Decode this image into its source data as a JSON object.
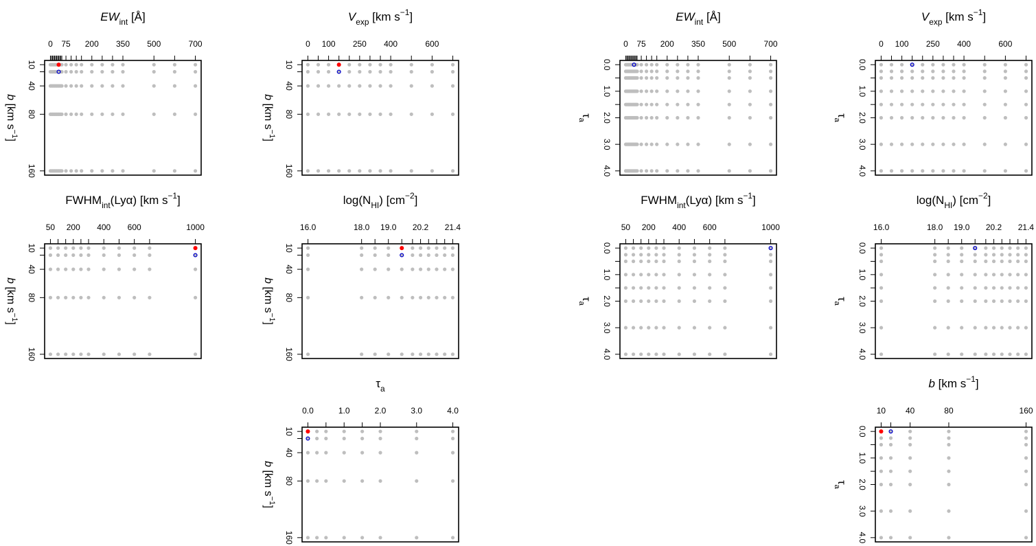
{
  "chart_data": [
    {
      "type": "scatter",
      "title": [
        {
          "text": "EW",
          "style": "italic"
        },
        {
          "text": "int",
          "style": "sub"
        },
        {
          "text": " [Å]"
        }
      ],
      "ylabel": [
        {
          "text": "b",
          "style": "italic"
        },
        {
          "text": " [km s"
        },
        {
          "text": "−1",
          "style": "sup"
        },
        {
          "text": "]"
        }
      ],
      "xlim": [
        -28,
        728
      ],
      "xticks": [
        0,
        75,
        200,
        350,
        500,
        700
      ],
      "xminor": [
        5,
        10,
        15,
        20,
        25,
        30,
        35,
        40,
        45,
        50,
        55,
        100,
        125,
        150,
        250,
        300,
        600
      ],
      "ylim": [
        166,
        4
      ],
      "yticks": [
        10,
        40,
        80,
        160
      ],
      "yminor": [
        20
      ],
      "grid_x": [
        0,
        5,
        10,
        15,
        20,
        25,
        30,
        35,
        40,
        45,
        50,
        55,
        75,
        100,
        125,
        150,
        200,
        250,
        300,
        350,
        500,
        600,
        700
      ],
      "grid_y": [
        10,
        20,
        40,
        80,
        160
      ],
      "grid_color": "#bebebe",
      "series": [
        {
          "color": "#ff0000",
          "filled": true,
          "x": [
            40
          ],
          "values": [
            10
          ]
        },
        {
          "color": "#0000cd",
          "filled": false,
          "x": [
            40
          ],
          "values": [
            20
          ]
        }
      ]
    },
    {
      "type": "scatter",
      "title": [
        {
          "text": "V",
          "style": "italic"
        },
        {
          "text": "exp",
          "style": "sub"
        },
        {
          "text": " [km s"
        },
        {
          "text": "−1",
          "style": "sup"
        },
        {
          "text": "]"
        }
      ],
      "ylabel": [
        {
          "text": "b",
          "style": "italic"
        },
        {
          "text": " [km s"
        },
        {
          "text": "−1",
          "style": "sup"
        },
        {
          "text": "]"
        }
      ],
      "xlim": [
        -28,
        728
      ],
      "xticks": [
        0,
        100,
        250,
        400,
        600
      ],
      "xminor": [
        50,
        150,
        200,
        300,
        350,
        500,
        700
      ],
      "ylim": [
        166,
        4
      ],
      "yticks": [
        10,
        40,
        80,
        160
      ],
      "yminor": [
        20
      ],
      "grid_x": [
        0,
        50,
        100,
        150,
        200,
        250,
        300,
        350,
        400,
        500,
        600,
        700
      ],
      "grid_y": [
        10,
        20,
        40,
        80,
        160
      ],
      "grid_color": "#bebebe",
      "series": [
        {
          "color": "#ff0000",
          "filled": true,
          "x": [
            150
          ],
          "values": [
            10
          ]
        },
        {
          "color": "#0000cd",
          "filled": false,
          "x": [
            150
          ],
          "values": [
            20
          ]
        }
      ]
    },
    {
      "type": "scatter",
      "title": [
        {
          "text": "EW",
          "style": "italic"
        },
        {
          "text": "int",
          "style": "sub"
        },
        {
          "text": " [Å]"
        }
      ],
      "ylabel": [
        {
          "text": "τ"
        },
        {
          "text": "a",
          "style": "sub"
        }
      ],
      "xlim": [
        -28,
        728
      ],
      "xticks": [
        0,
        75,
        200,
        350,
        500,
        700
      ],
      "xminor": [
        5,
        10,
        15,
        20,
        25,
        30,
        35,
        40,
        45,
        50,
        55,
        100,
        125,
        150,
        250,
        300,
        600
      ],
      "ylim": [
        4.16,
        -0.16
      ],
      "yticks": [
        {
          "value": 0,
          "label": "0.0"
        },
        {
          "value": 1,
          "label": "1.0"
        },
        {
          "value": 2,
          "label": "2.0"
        },
        {
          "value": 3,
          "label": "3.0"
        },
        {
          "value": 4,
          "label": "4.0"
        }
      ],
      "yminor": [
        0.5,
        1.5
      ],
      "grid_x": [
        0,
        5,
        10,
        15,
        20,
        25,
        30,
        35,
        40,
        45,
        50,
        55,
        75,
        100,
        125,
        150,
        200,
        250,
        300,
        350,
        500,
        600,
        700
      ],
      "grid_y": [
        0,
        0.25,
        0.5,
        1,
        1.5,
        2,
        3,
        4
      ],
      "grid_color": "#bebebe",
      "series": [
        {
          "color": "#0000cd",
          "filled": false,
          "x": [
            40
          ],
          "values": [
            0
          ]
        }
      ]
    },
    {
      "type": "scatter",
      "title": [
        {
          "text": "V",
          "style": "italic"
        },
        {
          "text": "exp",
          "style": "sub"
        },
        {
          "text": " [km s"
        },
        {
          "text": "−1",
          "style": "sup"
        },
        {
          "text": "]"
        }
      ],
      "ylabel": [
        {
          "text": "τ"
        },
        {
          "text": "a",
          "style": "sub"
        }
      ],
      "xlim": [
        -28,
        728
      ],
      "xticks": [
        0,
        100,
        250,
        400,
        600
      ],
      "xminor": [
        50,
        150,
        200,
        300,
        350,
        500,
        700
      ],
      "ylim": [
        4.16,
        -0.16
      ],
      "yticks": [
        {
          "value": 0,
          "label": "0.0"
        },
        {
          "value": 1,
          "label": "1.0"
        },
        {
          "value": 2,
          "label": "2.0"
        },
        {
          "value": 3,
          "label": "3.0"
        },
        {
          "value": 4,
          "label": "4.0"
        }
      ],
      "yminor": [
        0.5,
        1.5
      ],
      "grid_x": [
        0,
        50,
        100,
        150,
        200,
        250,
        300,
        350,
        400,
        500,
        600,
        700
      ],
      "grid_y": [
        0,
        0.25,
        0.5,
        1,
        1.5,
        2,
        3,
        4
      ],
      "grid_color": "#bebebe",
      "series": [
        {
          "color": "#0000cd",
          "filled": false,
          "x": [
            150
          ],
          "values": [
            0
          ]
        }
      ]
    },
    {
      "type": "scatter",
      "title": [
        {
          "text": "FWHM"
        },
        {
          "text": "int",
          "style": "sub"
        },
        {
          "text": "(Lyα) [km s"
        },
        {
          "text": "−1",
          "style": "sup"
        },
        {
          "text": "]"
        }
      ],
      "ylabel": [
        {
          "text": "b",
          "style": "italic"
        },
        {
          "text": " [km s"
        },
        {
          "text": "−1",
          "style": "sup"
        },
        {
          "text": "]"
        }
      ],
      "xlim": [
        12,
        1038
      ],
      "xticks": [
        50,
        200,
        400,
        600,
        1000
      ],
      "xminor": [
        100,
        150,
        250,
        300,
        500,
        700
      ],
      "ylim": [
        166,
        4
      ],
      "yticks": [
        10,
        40,
        80,
        160
      ],
      "yminor": [
        20
      ],
      "grid_x": [
        50,
        100,
        150,
        200,
        250,
        300,
        400,
        500,
        600,
        700,
        1000
      ],
      "grid_y": [
        10,
        20,
        40,
        80,
        160
      ],
      "grid_color": "#bebebe",
      "series": [
        {
          "color": "#ff0000",
          "filled": true,
          "x": [
            1000
          ],
          "values": [
            10
          ]
        },
        {
          "color": "#0000cd",
          "filled": false,
          "x": [
            1000
          ],
          "values": [
            20
          ]
        }
      ]
    },
    {
      "type": "scatter",
      "title": [
        {
          "text": "log(N"
        },
        {
          "text": "HI",
          "style": "sub"
        },
        {
          "text": ") [cm"
        },
        {
          "text": "−2",
          "style": "sup"
        },
        {
          "text": "]"
        }
      ],
      "ylabel": [
        {
          "text": "b",
          "style": "italic"
        },
        {
          "text": " [km s"
        },
        {
          "text": "−1",
          "style": "sup"
        },
        {
          "text": "]"
        }
      ],
      "xlim": [
        15.78,
        21.62
      ],
      "xticks": [
        {
          "value": 16,
          "label": "16.0"
        },
        {
          "value": 18,
          "label": "18.0"
        },
        {
          "value": 19,
          "label": "19.0"
        },
        20.2,
        21.4
      ],
      "xminor": [
        18.5,
        19.5,
        19.9,
        20.5,
        20.8,
        21.1
      ],
      "ylim": [
        166,
        4
      ],
      "yticks": [
        10,
        40,
        80,
        160
      ],
      "yminor": [
        20
      ],
      "grid_x": [
        16,
        18,
        18.5,
        19,
        19.5,
        19.9,
        20.2,
        20.5,
        20.8,
        21.1,
        21.4
      ],
      "grid_y": [
        10,
        20,
        40,
        80,
        160
      ],
      "grid_color": "#bebebe",
      "series": [
        {
          "color": "#ff0000",
          "filled": true,
          "x": [
            19.5
          ],
          "values": [
            10
          ]
        },
        {
          "color": "#0000cd",
          "filled": false,
          "x": [
            19.5
          ],
          "values": [
            20
          ]
        }
      ]
    },
    {
      "type": "scatter",
      "title": [
        {
          "text": "FWHM"
        },
        {
          "text": "int",
          "style": "sub"
        },
        {
          "text": "(Lyα) [km s"
        },
        {
          "text": "−1",
          "style": "sup"
        },
        {
          "text": "]"
        }
      ],
      "ylabel": [
        {
          "text": "τ"
        },
        {
          "text": "a",
          "style": "sub"
        }
      ],
      "xlim": [
        12,
        1038
      ],
      "xticks": [
        50,
        200,
        400,
        600,
        1000
      ],
      "xminor": [
        100,
        150,
        250,
        300,
        500,
        700
      ],
      "ylim": [
        4.16,
        -0.16
      ],
      "yticks": [
        {
          "value": 0,
          "label": "0.0"
        },
        {
          "value": 1,
          "label": "1.0"
        },
        {
          "value": 2,
          "label": "2.0"
        },
        {
          "value": 3,
          "label": "3.0"
        },
        {
          "value": 4,
          "label": "4.0"
        }
      ],
      "yminor": [
        0.5,
        1.5
      ],
      "grid_x": [
        50,
        100,
        150,
        200,
        250,
        300,
        400,
        500,
        600,
        700,
        1000
      ],
      "grid_y": [
        0,
        0.25,
        0.5,
        1,
        1.5,
        2,
        3,
        4
      ],
      "grid_color": "#bebebe",
      "series": [
        {
          "color": "#0000cd",
          "filled": false,
          "x": [
            1000
          ],
          "values": [
            0
          ]
        }
      ]
    },
    {
      "type": "scatter",
      "title": [
        {
          "text": "log(N"
        },
        {
          "text": "HI",
          "style": "sub"
        },
        {
          "text": ") [cm"
        },
        {
          "text": "−2",
          "style": "sup"
        },
        {
          "text": "]"
        }
      ],
      "ylabel": [
        {
          "text": "τ"
        },
        {
          "text": "a",
          "style": "sub"
        }
      ],
      "xlim": [
        15.78,
        21.62
      ],
      "xticks": [
        {
          "value": 16,
          "label": "16.0"
        },
        {
          "value": 18,
          "label": "18.0"
        },
        {
          "value": 19,
          "label": "19.0"
        },
        20.2,
        21.4
      ],
      "xminor": [
        18.5,
        19.5,
        19.9,
        20.5,
        20.8,
        21.1
      ],
      "ylim": [
        4.16,
        -0.16
      ],
      "yticks": [
        {
          "value": 0,
          "label": "0.0"
        },
        {
          "value": 1,
          "label": "1.0"
        },
        {
          "value": 2,
          "label": "2.0"
        },
        {
          "value": 3,
          "label": "3.0"
        },
        {
          "value": 4,
          "label": "4.0"
        }
      ],
      "yminor": [
        0.5,
        1.5
      ],
      "grid_x": [
        16,
        18,
        18.5,
        19,
        19.5,
        19.9,
        20.2,
        20.5,
        20.8,
        21.1,
        21.4
      ],
      "grid_y": [
        0,
        0.25,
        0.5,
        1,
        1.5,
        2,
        3,
        4
      ],
      "grid_color": "#bebebe",
      "series": [
        {
          "color": "#0000cd",
          "filled": false,
          "x": [
            19.5
          ],
          "values": [
            0
          ]
        }
      ]
    },
    {
      "type": "scatter",
      "title": [
        {
          "text": "τ"
        },
        {
          "text": "a",
          "style": "sub"
        }
      ],
      "ylabel": [
        {
          "text": "b",
          "style": "italic"
        },
        {
          "text": " [km s"
        },
        {
          "text": "−1",
          "style": "sup"
        },
        {
          "text": "]"
        }
      ],
      "xlim": [
        -0.16,
        4.16
      ],
      "xticks": [
        {
          "value": 0,
          "label": "0.0"
        },
        {
          "value": 1,
          "label": "1.0"
        },
        {
          "value": 2,
          "label": "2.0"
        },
        {
          "value": 3,
          "label": "3.0"
        },
        {
          "value": 4,
          "label": "4.0"
        }
      ],
      "xminor": [
        0.5,
        1.5
      ],
      "ylim": [
        166,
        4
      ],
      "yticks": [
        10,
        40,
        80,
        160
      ],
      "yminor": [
        20
      ],
      "grid_x": [
        0,
        0.25,
        0.5,
        1,
        1.5,
        2,
        3,
        4
      ],
      "grid_y": [
        10,
        20,
        40,
        80,
        160
      ],
      "grid_color": "#bebebe",
      "series": [
        {
          "color": "#ff0000",
          "filled": true,
          "x": [
            0
          ],
          "values": [
            10
          ]
        },
        {
          "color": "#0000cd",
          "filled": false,
          "x": [
            0
          ],
          "values": [
            20
          ]
        }
      ]
    },
    {
      "type": "scatter",
      "title": [
        {
          "text": "b",
          "style": "italic"
        },
        {
          "text": " [km s"
        },
        {
          "text": "−1",
          "style": "sup"
        },
        {
          "text": "]"
        }
      ],
      "ylabel": [
        {
          "text": "τ"
        },
        {
          "text": "a",
          "style": "sub"
        }
      ],
      "xlim": [
        4,
        166
      ],
      "xticks": [
        10,
        40,
        80,
        160
      ],
      "xminor": [
        20
      ],
      "ylim": [
        4.16,
        -0.16
      ],
      "yticks": [
        {
          "value": 0,
          "label": "0.0"
        },
        {
          "value": 1,
          "label": "1.0"
        },
        {
          "value": 2,
          "label": "2.0"
        },
        {
          "value": 3,
          "label": "3.0"
        },
        {
          "value": 4,
          "label": "4.0"
        }
      ],
      "yminor": [
        0.5,
        1.5
      ],
      "grid_x": [
        10,
        20,
        40,
        80,
        160
      ],
      "grid_y": [
        0,
        0.25,
        0.5,
        1,
        1.5,
        2,
        3,
        4
      ],
      "grid_color": "#bebebe",
      "series": [
        {
          "color": "#ff0000",
          "filled": true,
          "x": [
            10
          ],
          "values": [
            0
          ]
        },
        {
          "color": "#0000cd",
          "filled": false,
          "x": [
            20
          ],
          "values": [
            0
          ]
        }
      ]
    }
  ]
}
